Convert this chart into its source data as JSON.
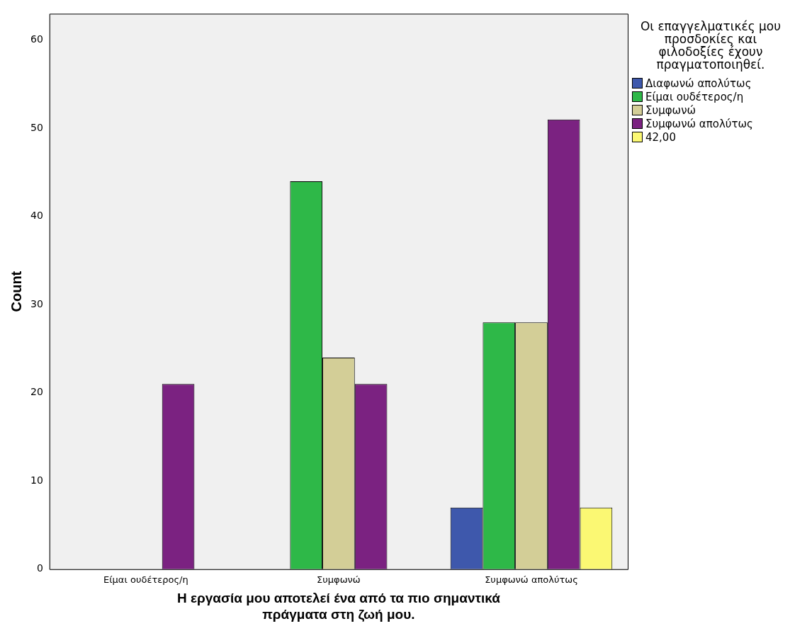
{
  "chart_data": {
    "type": "bar",
    "xlabel": "Η εργασία μου αποτελεί ένα από τα πιο σημαντικά πράγματα στη ζωή μου.",
    "ylabel": "Count",
    "legend_title": "Οι επαγγελματικές μου προσδοκίες και φιλοδοξίες έχουν πραγματοποιηθεί.",
    "categories": [
      "Είμαι ουδέτερος/η",
      "Συμφωνώ",
      "Συμφωνώ απολύτως"
    ],
    "series": [
      {
        "name": "Διαφωνώ απολύτως",
        "color": "#3e58ac",
        "values": [
          null,
          null,
          7
        ]
      },
      {
        "name": "Είμαι ουδέτερος/η",
        "color": "#2eb848",
        "values": [
          null,
          44,
          28
        ]
      },
      {
        "name": "Συμφωνώ",
        "color": "#d3ce97",
        "values": [
          null,
          24,
          28
        ]
      },
      {
        "name": "Συμφωνώ απολύτως",
        "color": "#7b2281",
        "values": [
          21,
          21,
          51
        ]
      },
      {
        "name": "42,00",
        "color": "#fbf873",
        "values": [
          null,
          null,
          7
        ]
      }
    ],
    "ylim": [
      0,
      63
    ],
    "yticks": [
      0,
      10,
      20,
      30,
      40,
      50,
      60
    ],
    "grid": false,
    "legend": "right"
  }
}
